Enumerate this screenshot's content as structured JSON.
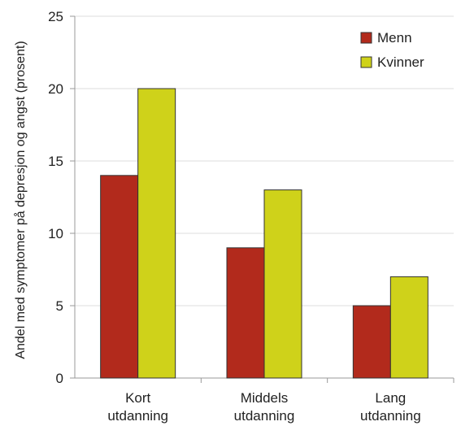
{
  "chart_data": {
    "type": "bar",
    "ylabel": "Andel med symptomer på depresjon og angst (prosent)",
    "xlabel": "",
    "ylim": [
      0,
      25
    ],
    "yticks": [
      0,
      5,
      10,
      15,
      20,
      25
    ],
    "grid": true,
    "legend_position": "top-right",
    "categories": [
      [
        "Kort",
        "utdanning"
      ],
      [
        "Middels",
        "utdanning"
      ],
      [
        "Lang",
        "utdanning"
      ]
    ],
    "series": [
      {
        "name": "Menn",
        "color": "#b22a1c",
        "values": [
          14,
          9,
          5
        ]
      },
      {
        "name": "Kvinner",
        "color": "#cfd21a",
        "values": [
          20,
          13,
          7
        ]
      }
    ]
  }
}
